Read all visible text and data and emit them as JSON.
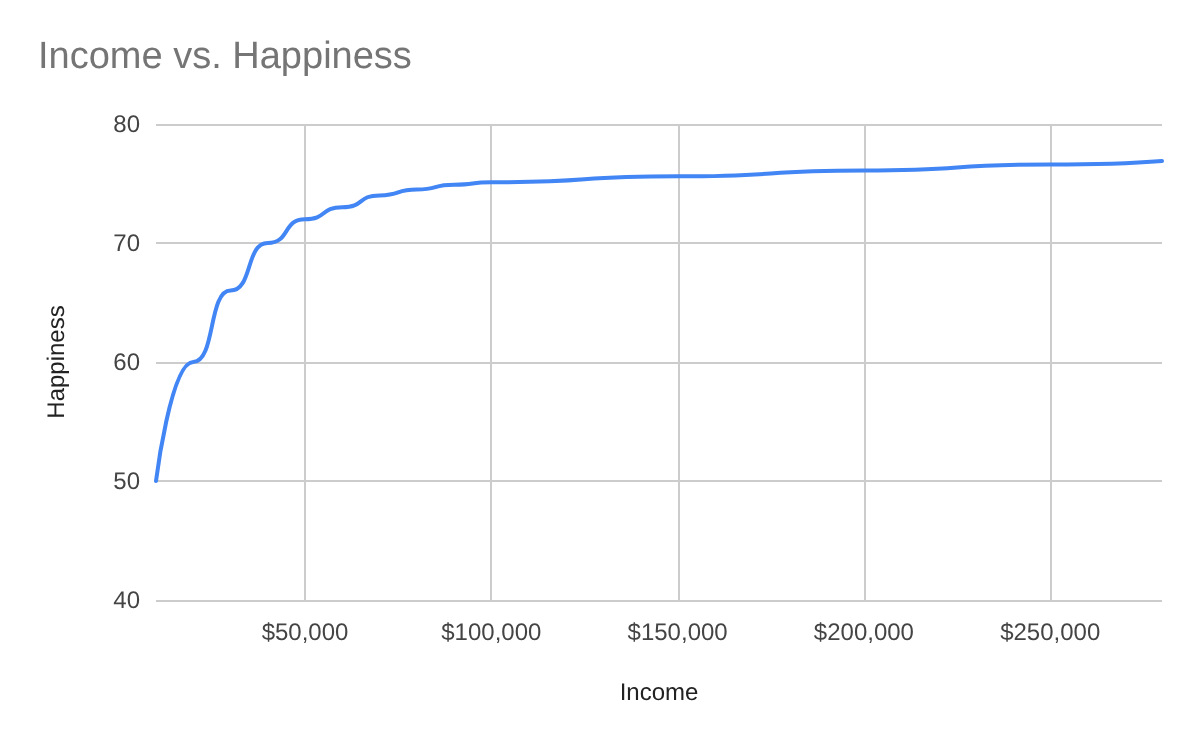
{
  "chart_data": {
    "type": "line",
    "title": "Income vs. Happiness",
    "xlabel": "Income",
    "ylabel": "Happiness",
    "x": [
      10000,
      20000,
      30000,
      40000,
      50000,
      60000,
      70000,
      80000,
      90000,
      100000,
      150000,
      200000,
      250000,
      280000
    ],
    "series": [
      {
        "color": "#4285f4",
        "values": [
          50,
          60,
          66,
          70,
          72,
          73,
          74,
          74.5,
          74.9,
          75.1,
          75.6,
          76.1,
          76.6,
          76.9
        ]
      }
    ],
    "xlim": [
      10000,
      280000
    ],
    "xticks": [
      {
        "value": 50000,
        "label": "$50,000"
      },
      {
        "value": 100000,
        "label": "$100,000"
      },
      {
        "value": 150000,
        "label": "$150,000"
      },
      {
        "value": 200000,
        "label": "$200,000"
      },
      {
        "value": 250000,
        "label": "$250,000"
      }
    ],
    "ylim": [
      40,
      80
    ],
    "yticks": [
      40,
      50,
      60,
      70,
      80
    ],
    "grid": true
  }
}
